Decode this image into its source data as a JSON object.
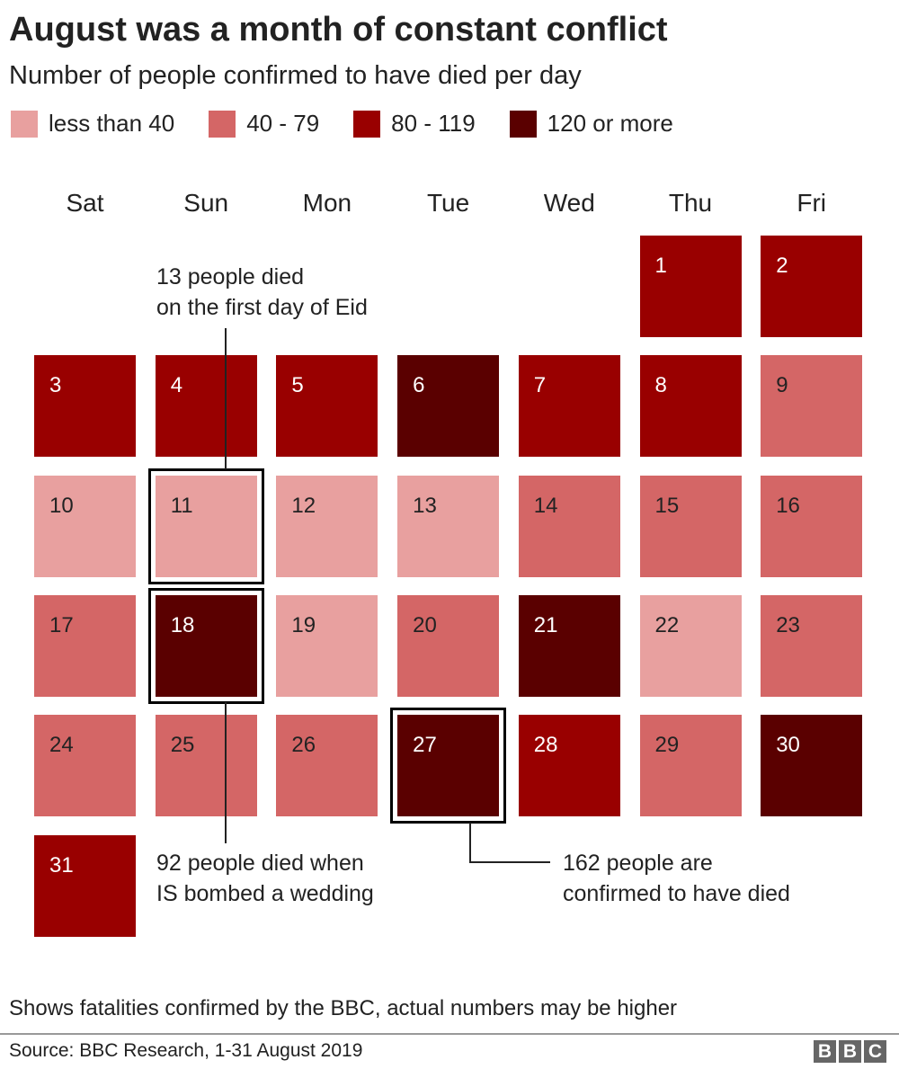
{
  "title": "August was a month of constant conflict",
  "subtitle": "Number of people confirmed to have died per day",
  "legend": [
    {
      "label": "less than 40",
      "color": "#e8a09f"
    },
    {
      "label": "40 - 79",
      "color": "#d46666"
    },
    {
      "label": "80 - 119",
      "color": "#990000"
    },
    {
      "label": "120 or more",
      "color": "#5a0000"
    }
  ],
  "chart_data": {
    "type": "heatmap",
    "title": "August was a month of constant conflict",
    "subtitle": "Number of people confirmed to have died per day",
    "weekdays": [
      "Sat",
      "Sun",
      "Mon",
      "Tue",
      "Wed",
      "Thu",
      "Fri"
    ],
    "first_day_weekday": "Thu",
    "categories": [
      "less than 40",
      "40 - 79",
      "80 - 119",
      "120 or more"
    ],
    "days": [
      {
        "day": 1,
        "category": "80 - 119"
      },
      {
        "day": 2,
        "category": "80 - 119"
      },
      {
        "day": 3,
        "category": "80 - 119"
      },
      {
        "day": 4,
        "category": "80 - 119"
      },
      {
        "day": 5,
        "category": "80 - 119"
      },
      {
        "day": 6,
        "category": "120 or more"
      },
      {
        "day": 7,
        "category": "80 - 119"
      },
      {
        "day": 8,
        "category": "80 - 119"
      },
      {
        "day": 9,
        "category": "40 - 79"
      },
      {
        "day": 10,
        "category": "less than 40"
      },
      {
        "day": 11,
        "category": "less than 40"
      },
      {
        "day": 12,
        "category": "less than 40"
      },
      {
        "day": 13,
        "category": "less than 40"
      },
      {
        "day": 14,
        "category": "40 - 79"
      },
      {
        "day": 15,
        "category": "40 - 79"
      },
      {
        "day": 16,
        "category": "40 - 79"
      },
      {
        "day": 17,
        "category": "40 - 79"
      },
      {
        "day": 18,
        "category": "120 or more"
      },
      {
        "day": 19,
        "category": "less than 40"
      },
      {
        "day": 20,
        "category": "40 - 79"
      },
      {
        "day": 21,
        "category": "120 or more"
      },
      {
        "day": 22,
        "category": "less than 40"
      },
      {
        "day": 23,
        "category": "40 - 79"
      },
      {
        "day": 24,
        "category": "40 - 79"
      },
      {
        "day": 25,
        "category": "40 - 79"
      },
      {
        "day": 26,
        "category": "40 - 79"
      },
      {
        "day": 27,
        "category": "120 or more"
      },
      {
        "day": 28,
        "category": "80 - 119"
      },
      {
        "day": 29,
        "category": "40 - 79"
      },
      {
        "day": 30,
        "category": "120 or more"
      },
      {
        "day": 31,
        "category": "80 - 119"
      }
    ],
    "annotations": [
      {
        "day": 11,
        "lines": [
          "13 people died",
          "on the first day of Eid"
        ]
      },
      {
        "day": 18,
        "lines": [
          "92 people died when",
          "IS bombed a wedding"
        ]
      },
      {
        "day": 27,
        "lines": [
          "162 people are",
          "confirmed to have died"
        ]
      }
    ]
  },
  "footnote": "Shows fatalities confirmed by the BBC, actual numbers may be higher",
  "source": "Source: BBC Research, 1-31 August 2019",
  "logo": [
    "B",
    "B",
    "C"
  ]
}
